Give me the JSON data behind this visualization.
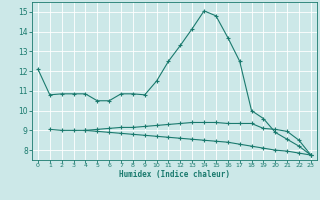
{
  "xlabel": "Humidex (Indice chaleur)",
  "ylabel": "",
  "bg_color": "#cce8e8",
  "line_color": "#1a7a6e",
  "grid_color": "#ffffff",
  "xlim": [
    -0.5,
    23.5
  ],
  "ylim": [
    7.5,
    15.5
  ],
  "xticks": [
    0,
    1,
    2,
    3,
    4,
    5,
    6,
    7,
    8,
    9,
    10,
    11,
    12,
    13,
    14,
    15,
    16,
    17,
    18,
    19,
    20,
    21,
    22,
    23
  ],
  "yticks": [
    8,
    9,
    10,
    11,
    12,
    13,
    14,
    15
  ],
  "line1_x": [
    0,
    1,
    2,
    3,
    4,
    5,
    6,
    7,
    8,
    9,
    10,
    11,
    12,
    13,
    14,
    15,
    16,
    17,
    18,
    19,
    20,
    21,
    22,
    23
  ],
  "line1_y": [
    12.1,
    10.8,
    10.85,
    10.85,
    10.85,
    10.5,
    10.5,
    10.85,
    10.85,
    10.8,
    11.5,
    12.5,
    13.3,
    14.15,
    15.05,
    14.8,
    13.7,
    12.5,
    10.0,
    9.6,
    8.9,
    8.55,
    8.2,
    7.75
  ],
  "line2_x": [
    1,
    2,
    3,
    4,
    5,
    6,
    7,
    8,
    9,
    10,
    11,
    12,
    13,
    14,
    15,
    16,
    17,
    18,
    19,
    20,
    21,
    22,
    23
  ],
  "line2_y": [
    9.05,
    9.0,
    9.0,
    9.0,
    9.05,
    9.1,
    9.15,
    9.15,
    9.2,
    9.25,
    9.3,
    9.35,
    9.4,
    9.4,
    9.4,
    9.35,
    9.35,
    9.35,
    9.1,
    9.05,
    8.95,
    8.5,
    7.75
  ],
  "line3_x": [
    4,
    5,
    6,
    7,
    8,
    9,
    10,
    11,
    12,
    13,
    14,
    15,
    16,
    17,
    18,
    19,
    20,
    21,
    22,
    23
  ],
  "line3_y": [
    9.0,
    8.95,
    8.9,
    8.85,
    8.8,
    8.75,
    8.7,
    8.65,
    8.6,
    8.55,
    8.5,
    8.45,
    8.4,
    8.3,
    8.2,
    8.1,
    8.0,
    7.95,
    7.85,
    7.75
  ]
}
